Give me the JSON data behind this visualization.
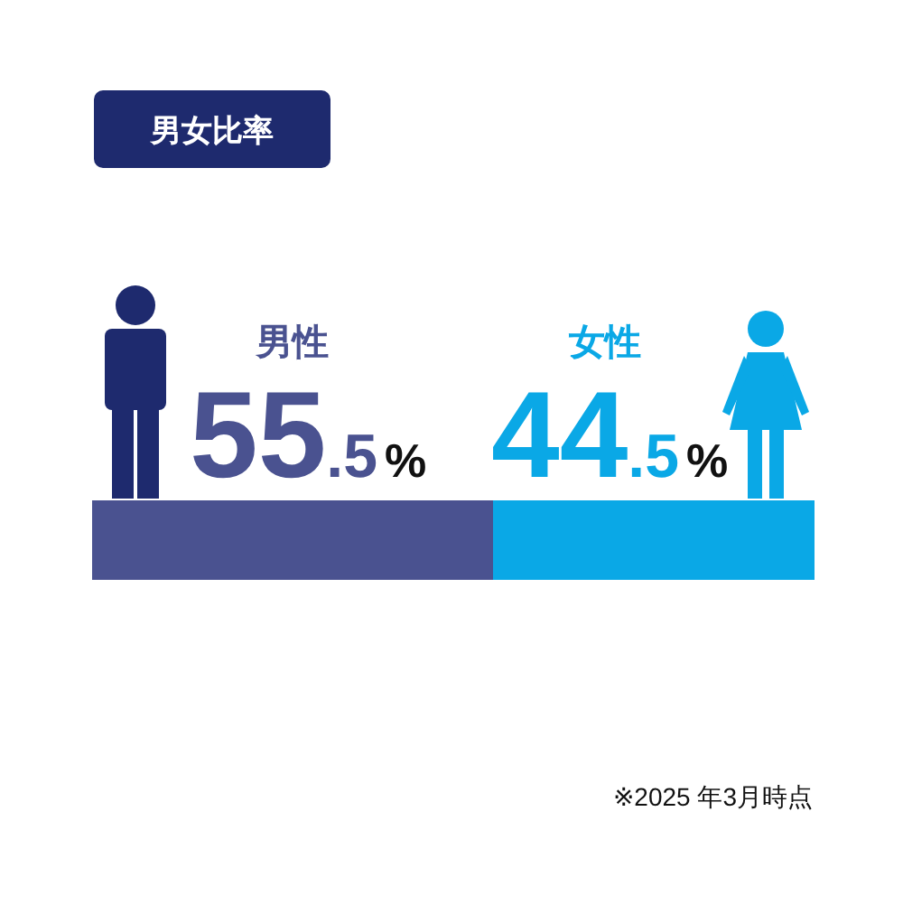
{
  "chart_data": {
    "type": "bar",
    "orientation": "horizontal",
    "stacked": true,
    "title": "男女比率",
    "categories": [
      null
    ],
    "series": [
      {
        "name": "男性",
        "color": "#4a5290",
        "values": [
          55.5
        ],
        "value_labels": [
          "55.5%"
        ]
      },
      {
        "name": "女性",
        "color": "#0aa8e6",
        "values": [
          44.5
        ],
        "value_labels": [
          "44.5%"
        ]
      }
    ],
    "annotations": [
      "※2025 年3月時点"
    ]
  }
}
